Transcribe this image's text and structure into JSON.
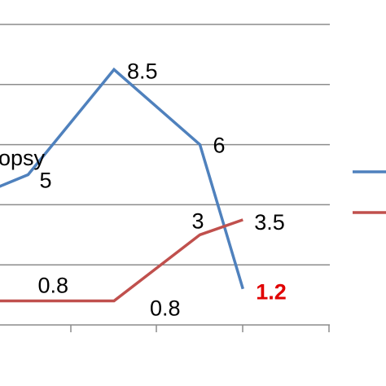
{
  "chart_data": {
    "type": "line",
    "x": [
      0,
      1,
      2,
      3,
      4
    ],
    "series": [
      {
        "color": "#4f81bd",
        "values": [
          5,
          8.5,
          6,
          1.2
        ],
        "x": [
          1,
          2,
          3,
          3.5
        ],
        "start": 4.5,
        "labels": [
          "5",
          "8.5",
          "6",
          "1.2"
        ],
        "label_colors": [
          "#000000",
          "#000000",
          "#000000",
          "#e00000"
        ]
      },
      {
        "color": "#c0504d",
        "values": [
          0.8,
          0.8,
          3,
          3.5
        ],
        "x": [
          1,
          2,
          3,
          3.5
        ],
        "start": 0.8,
        "labels": [
          "0.8",
          "0.8",
          "3",
          "3.5"
        ],
        "label_colors": [
          "#000000",
          "#000000",
          "#000000",
          "#000000"
        ]
      }
    ],
    "ylim": [
      0,
      10
    ],
    "grid": true,
    "legend": "right",
    "annotation": "opsy"
  }
}
